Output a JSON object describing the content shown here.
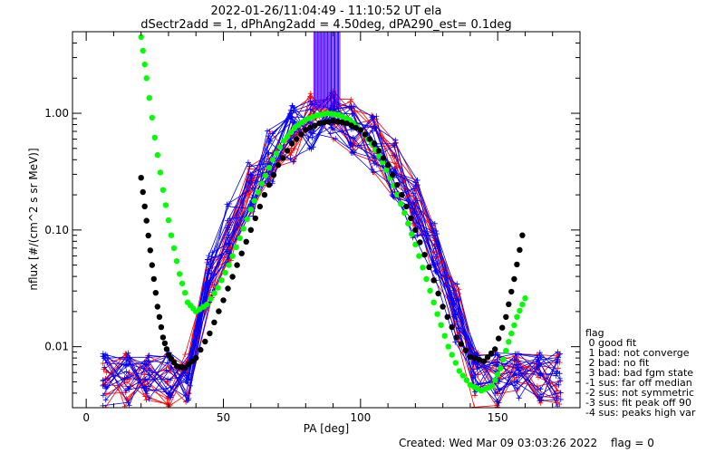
{
  "chart_data": {
    "type": "line",
    "title": "2022-01-26/11:04:49 - 11:10:52 UT ela",
    "subtitle": "dSectr2add = 1, dPhAng2add = 4.50deg, dPA290_est=   0.1deg",
    "xlabel": "PA [deg]",
    "ylabel": "nflux [#/(cm^2 s sr MeV)]",
    "xlim": [
      -5,
      180
    ],
    "ylim": [
      0.003,
      5
    ],
    "yscale": "log",
    "x_ticks": [
      "0",
      "50",
      "100",
      "150"
    ],
    "y_ticks": [
      "0.01",
      "0.10",
      "1.00"
    ],
    "y_tick_values": [
      0.01,
      0.1,
      1.0
    ],
    "grid": false,
    "colors": {
      "red": "#ff0000",
      "blue": "#0000ff",
      "green": "#00ff00",
      "black": "#000000",
      "purple": "#8000ff"
    },
    "series": [
      {
        "name": "",
        "color": "green",
        "style": "dots",
        "x": [
          20,
          22,
          25,
          28,
          31,
          34,
          37,
          40,
          44,
          48,
          52,
          56,
          60,
          64,
          68,
          72,
          76,
          80,
          84,
          88,
          92,
          96,
          100,
          104,
          108,
          112,
          116,
          120,
          124,
          128,
          132,
          136,
          140,
          144,
          148,
          151,
          154,
          157,
          160
        ],
        "y": [
          4.5,
          2.0,
          0.62,
          0.22,
          0.09,
          0.042,
          0.024,
          0.02,
          0.023,
          0.032,
          0.05,
          0.085,
          0.15,
          0.25,
          0.4,
          0.58,
          0.75,
          0.88,
          0.96,
          1.0,
          0.97,
          0.88,
          0.72,
          0.55,
          0.38,
          0.24,
          0.14,
          0.075,
          0.038,
          0.019,
          0.01,
          0.0062,
          0.0047,
          0.0042,
          0.0046,
          0.0065,
          0.011,
          0.018,
          0.026
        ]
      },
      {
        "name": "",
        "color": "black",
        "style": "dots",
        "x": [
          20,
          22,
          24,
          26,
          28,
          30,
          33,
          36,
          40,
          45,
          50,
          55,
          60,
          65,
          70,
          75,
          80,
          85,
          90,
          95,
          100,
          105,
          110,
          115,
          120,
          125,
          130,
          135,
          140,
          145,
          149,
          153,
          156,
          159
        ],
        "y": [
          0.28,
          0.12,
          0.05,
          0.022,
          0.012,
          0.0085,
          0.0068,
          0.0066,
          0.008,
          0.013,
          0.025,
          0.05,
          0.1,
          0.2,
          0.36,
          0.55,
          0.72,
          0.82,
          0.86,
          0.82,
          0.72,
          0.55,
          0.36,
          0.2,
          0.1,
          0.048,
          0.022,
          0.012,
          0.0082,
          0.0075,
          0.0095,
          0.018,
          0.038,
          0.09
        ]
      }
    ]
  },
  "flag_legend": {
    "title": "flag",
    "items": [
      " 0 good fit",
      " 1 bad: not converge",
      " 2 bad: no fit",
      " 3 bad: bad fgm state",
      "-1 sus: far off median",
      "-2 sus: not symmetric",
      "-3 sus: fit peak off 90",
      "-4 sus: peaks high var"
    ]
  },
  "footer": {
    "created": "Created: Wed Mar 09 03:03:26 2022",
    "flag": "flag = 0"
  }
}
